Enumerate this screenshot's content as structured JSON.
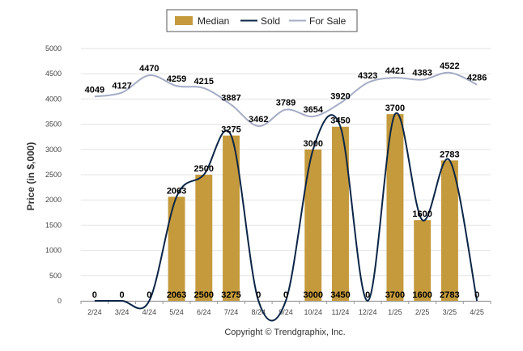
{
  "colors": {
    "median": "#c49a3c",
    "sold": "#0b2546",
    "for_sale": "#a4acc6",
    "grid": "#e3e3e3",
    "axis": "#999999"
  },
  "copyright": "Copyright © Trendgraphix, Inc.",
  "chart_data": {
    "type": "bar",
    "title": "",
    "xlabel": "",
    "ylabel": "Price (in $,000)",
    "ylim": [
      0,
      5000
    ],
    "yticks": [
      0,
      500,
      1000,
      1500,
      2000,
      2500,
      3000,
      3500,
      4000,
      4500,
      5000
    ],
    "grid": true,
    "legend_position": "top-center",
    "categories": [
      "2/24",
      "3/24",
      "4/24",
      "5/24",
      "6/24",
      "7/24",
      "8/24",
      "9/24",
      "10/24",
      "11/24",
      "12/24",
      "1/25",
      "2/25",
      "3/25",
      "4/25"
    ],
    "series": [
      {
        "name": "Median",
        "kind": "bar",
        "values": [
          0,
          0,
          0,
          2063,
          2500,
          3275,
          0,
          0,
          3000,
          3450,
          0,
          3700,
          1600,
          2783,
          0
        ]
      },
      {
        "name": "Sold",
        "kind": "line",
        "values": [
          0,
          0,
          0,
          2063,
          2500,
          3275,
          0,
          0,
          3000,
          3450,
          0,
          3700,
          1600,
          2783,
          0
        ]
      },
      {
        "name": "For Sale",
        "kind": "line",
        "values": [
          4049,
          4127,
          4470,
          4259,
          4215,
          3887,
          3462,
          3789,
          3654,
          3920,
          4323,
          4421,
          4383,
          4522,
          4286
        ]
      }
    ]
  }
}
